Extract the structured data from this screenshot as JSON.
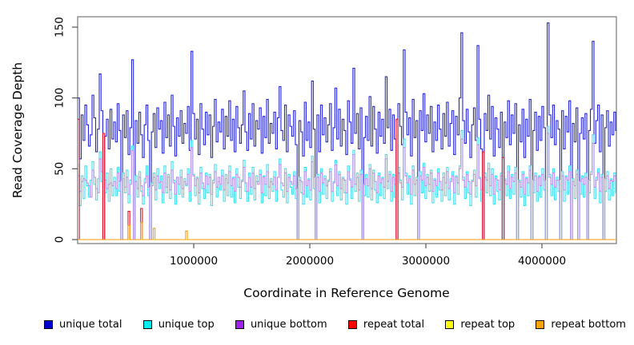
{
  "figure": {
    "xlabel": "Coordinate in Reference Genome",
    "ylabel": "Read Coverage Depth",
    "background": "#ffffff",
    "box_color": "#777777",
    "tick_color": "#555555"
  },
  "chart_data": {
    "type": "line",
    "step": true,
    "title": "",
    "xlabel": "Coordinate in Reference Genome",
    "ylabel": "Read Coverage Depth",
    "xlim": [
      0,
      4650000
    ],
    "ylim": [
      0,
      157
    ],
    "grid": false,
    "legend_position": "bottom",
    "x_start": 0,
    "x_step": 15500,
    "x_ticks": [
      1000000,
      2000000,
      3000000,
      4000000
    ],
    "x_tick_labels": [
      "1000000",
      "2000000",
      "3000000",
      "4000000"
    ],
    "y_ticks": [
      0,
      50,
      100,
      150
    ],
    "y_tick_labels": [
      "0",
      "50",
      "100",
      "150"
    ],
    "series": [
      {
        "name": "unique total",
        "color": "#2525DC",
        "legend_color": "#0000CC",
        "values": [
          100,
          57,
          88,
          70,
          95,
          81,
          66,
          74,
          102,
          86,
          62,
          78,
          117,
          91,
          0,
          73,
          85,
          64,
          92,
          71,
          83,
          69,
          96,
          77,
          0,
          88,
          72,
          91,
          60,
          79,
          127,
          0,
          84,
          68,
          90,
          74,
          58,
          81,
          95,
          70,
          0,
          76,
          89,
          65,
          93,
          78,
          84,
          61,
          97,
          72,
          88,
          66,
          102,
          80,
          59,
          86,
          73,
          91,
          68,
          82,
          75,
          94,
          63,
          133,
          89,
          71,
          85,
          60,
          96,
          78,
          67,
          90,
          74,
          88,
          58,
          80,
          99,
          69,
          83,
          76,
          92,
          64,
          87,
          73,
          98,
          70,
          85,
          62,
          94,
          79,
          68,
          81,
          105,
          76,
          63,
          89,
          71,
          96,
          66,
          84,
          78,
          93,
          61,
          87,
          72,
          99,
          68,
          82,
          75,
          90,
          64,
          86,
          108,
          77,
          70,
          95,
          62,
          88,
          80,
          73,
          91,
          67,
          0,
          84,
          76,
          59,
          97,
          70,
          83,
          65,
          112,
          78,
          0,
          88,
          62,
          95,
          74,
          86,
          69,
          81,
          96,
          63,
          79,
          107,
          71,
          92,
          66,
          85,
          77,
          60,
          98,
          83,
          68,
          121,
          75,
          89,
          64,
          93,
          0,
          72,
          87,
          70,
          101,
          66,
          94,
          78,
          61,
          90,
          73,
          85,
          68,
          115,
          79,
          92,
          63,
          88,
          71,
          0,
          96,
          80,
          67,
          134,
          90,
          74,
          86,
          59,
          99,
          72,
          84,
          0,
          91,
          77,
          103,
          69,
          88,
          75,
          94,
          62,
          83,
          70,
          95,
          78,
          64,
          89,
          73,
          97,
          66,
          82,
          91,
          60,
          87,
          74,
          100,
          146,
          84,
          68,
          92,
          76,
          58,
          81,
          93,
          70,
          137,
          85,
          64,
          0,
          89,
          77,
          102,
          71,
          94,
          59,
          86,
          78,
          65,
          90,
          0,
          83,
          72,
          98,
          67,
          88,
          75,
          96,
          0,
          81,
          69,
          92,
          58,
          85,
          73,
          99,
          0,
          77,
          90,
          63,
          87,
          70,
          94,
          79,
          0,
          153,
          88,
          72,
          95,
          67,
          84,
          78,
          0,
          91,
          64,
          87,
          76,
          98,
          0,
          82,
          69,
          93,
          0,
          75,
          86,
          71,
          89,
          0,
          77,
          92,
          140,
          68,
          84,
          95,
          62,
          88,
          0,
          79,
          91,
          66,
          83,
          74,
          90,
          77
        ]
      },
      {
        "name": "unique top",
        "color": "#3FE0F0",
        "legend_color": "#00EFEF",
        "values": [
          53,
          24,
          45,
          29,
          52,
          38,
          30,
          42,
          55,
          39,
          28,
          43,
          62,
          41,
          0,
          33,
          47,
          27,
          50,
          31,
          44,
          31,
          51,
          34,
          0,
          47,
          33,
          49,
          26,
          42,
          66,
          0,
          45,
          30,
          48,
          34,
          25,
          43,
          52,
          31,
          0,
          40,
          47,
          28,
          50,
          36,
          45,
          26,
          52,
          33,
          46,
          29,
          55,
          42,
          25,
          44,
          32,
          49,
          30,
          43,
          38,
          50,
          27,
          70,
          46,
          31,
          44,
          25,
          51,
          36,
          29,
          47,
          33,
          46,
          24,
          42,
          53,
          30,
          41,
          35,
          49,
          27,
          46,
          31,
          52,
          30,
          44,
          26,
          50,
          37,
          29,
          42,
          56,
          34,
          27,
          47,
          32,
          51,
          28,
          45,
          41,
          49,
          26,
          45,
          31,
          53,
          29,
          43,
          34,
          48,
          27,
          44,
          57,
          35,
          30,
          50,
          26,
          46,
          37,
          32,
          48,
          29,
          0,
          44,
          33,
          25,
          51,
          30,
          43,
          28,
          59,
          36,
          0,
          46,
          26,
          50,
          32,
          45,
          29,
          42,
          50,
          27,
          41,
          56,
          31,
          48,
          28,
          44,
          33,
          25,
          52,
          43,
          29,
          63,
          34,
          47,
          27,
          49,
          0,
          31,
          46,
          30,
          53,
          28,
          49,
          35,
          26,
          47,
          31,
          44,
          29,
          60,
          36,
          48,
          27,
          46,
          30,
          0,
          51,
          42,
          28,
          71,
          47,
          32,
          45,
          25,
          52,
          31,
          44,
          0,
          48,
          33,
          54,
          29,
          46,
          34,
          49,
          26,
          43,
          30,
          50,
          35,
          27,
          47,
          31,
          51,
          28,
          43,
          48,
          25,
          45,
          32,
          52,
          77,
          44,
          29,
          48,
          33,
          24,
          42,
          49,
          30,
          72,
          44,
          27,
          0,
          47,
          33,
          54,
          31,
          50,
          25,
          45,
          34,
          28,
          47,
          0,
          43,
          31,
          52,
          29,
          46,
          32,
          51,
          0,
          42,
          30,
          48,
          24,
          44,
          31,
          52,
          0,
          33,
          47,
          27,
          45,
          30,
          50,
          35,
          0,
          80,
          46,
          31,
          50,
          28,
          44,
          34,
          0,
          48,
          27,
          45,
          32,
          52,
          0,
          43,
          29,
          49,
          0,
          32,
          45,
          30,
          47,
          0,
          33,
          48,
          74,
          29,
          44,
          50,
          26,
          46,
          0,
          34,
          48,
          28,
          43,
          31,
          47,
          33
        ]
      },
      {
        "name": "unique bottom",
        "color": "#BE90E6",
        "legend_color": "#A020F0",
        "values": [
          45,
          34,
          41,
          43,
          42,
          40,
          38,
          30,
          49,
          44,
          36,
          33,
          57,
          48,
          0,
          42,
          36,
          39,
          40,
          38,
          41,
          36,
          47,
          41,
          0,
          43,
          37,
          44,
          32,
          39,
          63,
          0,
          41,
          36,
          44,
          38,
          31,
          40,
          45,
          37,
          0,
          38,
          44,
          35,
          45,
          40,
          41,
          33,
          47,
          37,
          44,
          35,
          49,
          40,
          32,
          44,
          39,
          44,
          36,
          41,
          39,
          46,
          34,
          65,
          45,
          38,
          43,
          33,
          47,
          40,
          36,
          45,
          39,
          44,
          32,
          40,
          48,
          37,
          44,
          39,
          45,
          35,
          43,
          40,
          48,
          38,
          43,
          34,
          46,
          44,
          37,
          41,
          51,
          40,
          34,
          44,
          37,
          47,
          36,
          41,
          39,
          46,
          33,
          44,
          39,
          48,
          37,
          41,
          39,
          44,
          35,
          44,
          53,
          40,
          38,
          47,
          34,
          44,
          41,
          39,
          45,
          36,
          0,
          42,
          41,
          32,
          48,
          38,
          42,
          35,
          55,
          44,
          0,
          44,
          34,
          47,
          40,
          43,
          38,
          41,
          48,
          34,
          40,
          53,
          38,
          46,
          36,
          43,
          42,
          33,
          48,
          42,
          37,
          60,
          39,
          44,
          35,
          46,
          0,
          39,
          43,
          38,
          50,
          36,
          47,
          41,
          33,
          45,
          40,
          43,
          37,
          57,
          41,
          46,
          34,
          44,
          39,
          0,
          47,
          40,
          37,
          65,
          45,
          40,
          43,
          32,
          49,
          39,
          42,
          0,
          45,
          42,
          51,
          38,
          44,
          39,
          47,
          34,
          42,
          38,
          47,
          41,
          35,
          44,
          40,
          48,
          36,
          41,
          45,
          33,
          44,
          40,
          50,
          71,
          42,
          37,
          46,
          41,
          32,
          41,
          46,
          38,
          67,
          43,
          35,
          0,
          44,
          42,
          50,
          38,
          46,
          32,
          43,
          42,
          35,
          45,
          0,
          42,
          39,
          48,
          36,
          44,
          41,
          47,
          0,
          41,
          37,
          46,
          32,
          43,
          40,
          49,
          0,
          42,
          45,
          34,
          44,
          38,
          46,
          42,
          0,
          75,
          44,
          39,
          47,
          37,
          42,
          42,
          0,
          45,
          35,
          44,
          42,
          48,
          0,
          41,
          38,
          46,
          0,
          41,
          43,
          39,
          44,
          0,
          42,
          46,
          68,
          37,
          42,
          47,
          34,
          44,
          0,
          43,
          45,
          36,
          42,
          41,
          45,
          42
        ]
      },
      {
        "name": "repeat total",
        "color": "#E81123",
        "legend_color": "#FF0000",
        "length": 300,
        "default": 0,
        "spikes": {
          "0": 85,
          "14": 75,
          "28": 20,
          "35": 22,
          "177": 85,
          "225": 62,
          "236": 58
        }
      },
      {
        "name": "repeat top",
        "color": "#FFFF00",
        "legend_color": "#FFFF00",
        "length": 300,
        "default": 0,
        "spikes": {}
      },
      {
        "name": "repeat bottom",
        "color": "#FF9E00",
        "legend_color": "#FFA500",
        "length": 300,
        "default": 0,
        "spikes": {
          "28": 10,
          "35": 12,
          "42": 8,
          "60": 6
        }
      }
    ]
  }
}
